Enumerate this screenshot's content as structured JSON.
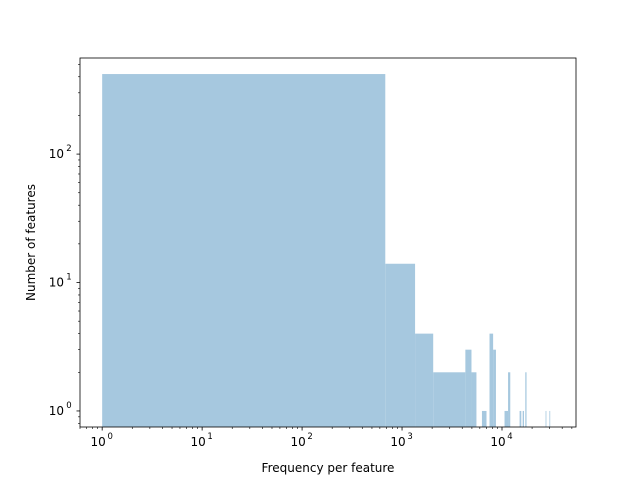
{
  "chart_data": {
    "type": "bar",
    "title": "",
    "xlabel": "Frequency per feature",
    "ylabel": "Number of features",
    "x_scale": "log",
    "y_scale": "log",
    "xlim": [
      0.6,
      55000
    ],
    "ylim": [
      0.75,
      560
    ],
    "grid": false,
    "bar_color": "#a6c8df",
    "x_major_ticks": [
      {
        "value": 1,
        "label": "10",
        "exp": "0"
      },
      {
        "value": 10,
        "label": "10",
        "exp": "1"
      },
      {
        "value": 100,
        "label": "10",
        "exp": "2"
      },
      {
        "value": 1000,
        "label": "10",
        "exp": "3"
      },
      {
        "value": 10000,
        "label": "10",
        "exp": "4"
      }
    ],
    "y_major_ticks": [
      {
        "value": 1,
        "label": "10",
        "exp": "0"
      },
      {
        "value": 10,
        "label": "10",
        "exp": "1"
      },
      {
        "value": 100,
        "label": "10",
        "exp": "2"
      }
    ],
    "bins": [
      {
        "x0": 1,
        "x1": 680,
        "count": 420
      },
      {
        "x0": 680,
        "x1": 1350,
        "count": 14
      },
      {
        "x0": 1350,
        "x1": 2050,
        "count": 4
      },
      {
        "x0": 2050,
        "x1": 4300,
        "count": 2
      },
      {
        "x0": 4300,
        "x1": 4950,
        "count": 3
      },
      {
        "x0": 4950,
        "x1": 5550,
        "count": 2
      },
      {
        "x0": 6300,
        "x1": 7000,
        "count": 1
      },
      {
        "x0": 7500,
        "x1": 8150,
        "count": 4
      },
      {
        "x0": 8150,
        "x1": 8700,
        "count": 3
      },
      {
        "x0": 10600,
        "x1": 11500,
        "count": 1
      },
      {
        "x0": 11500,
        "x1": 12100,
        "count": 2
      },
      {
        "x0": 15000,
        "x1": 15600,
        "count": 1
      },
      {
        "x0": 16100,
        "x1": 16600,
        "count": 1
      },
      {
        "x0": 17100,
        "x1": 17600,
        "count": 2
      },
      {
        "x0": 27300,
        "x1": 27800,
        "count": 1
      },
      {
        "x0": 29800,
        "x1": 30300,
        "count": 1
      }
    ]
  }
}
